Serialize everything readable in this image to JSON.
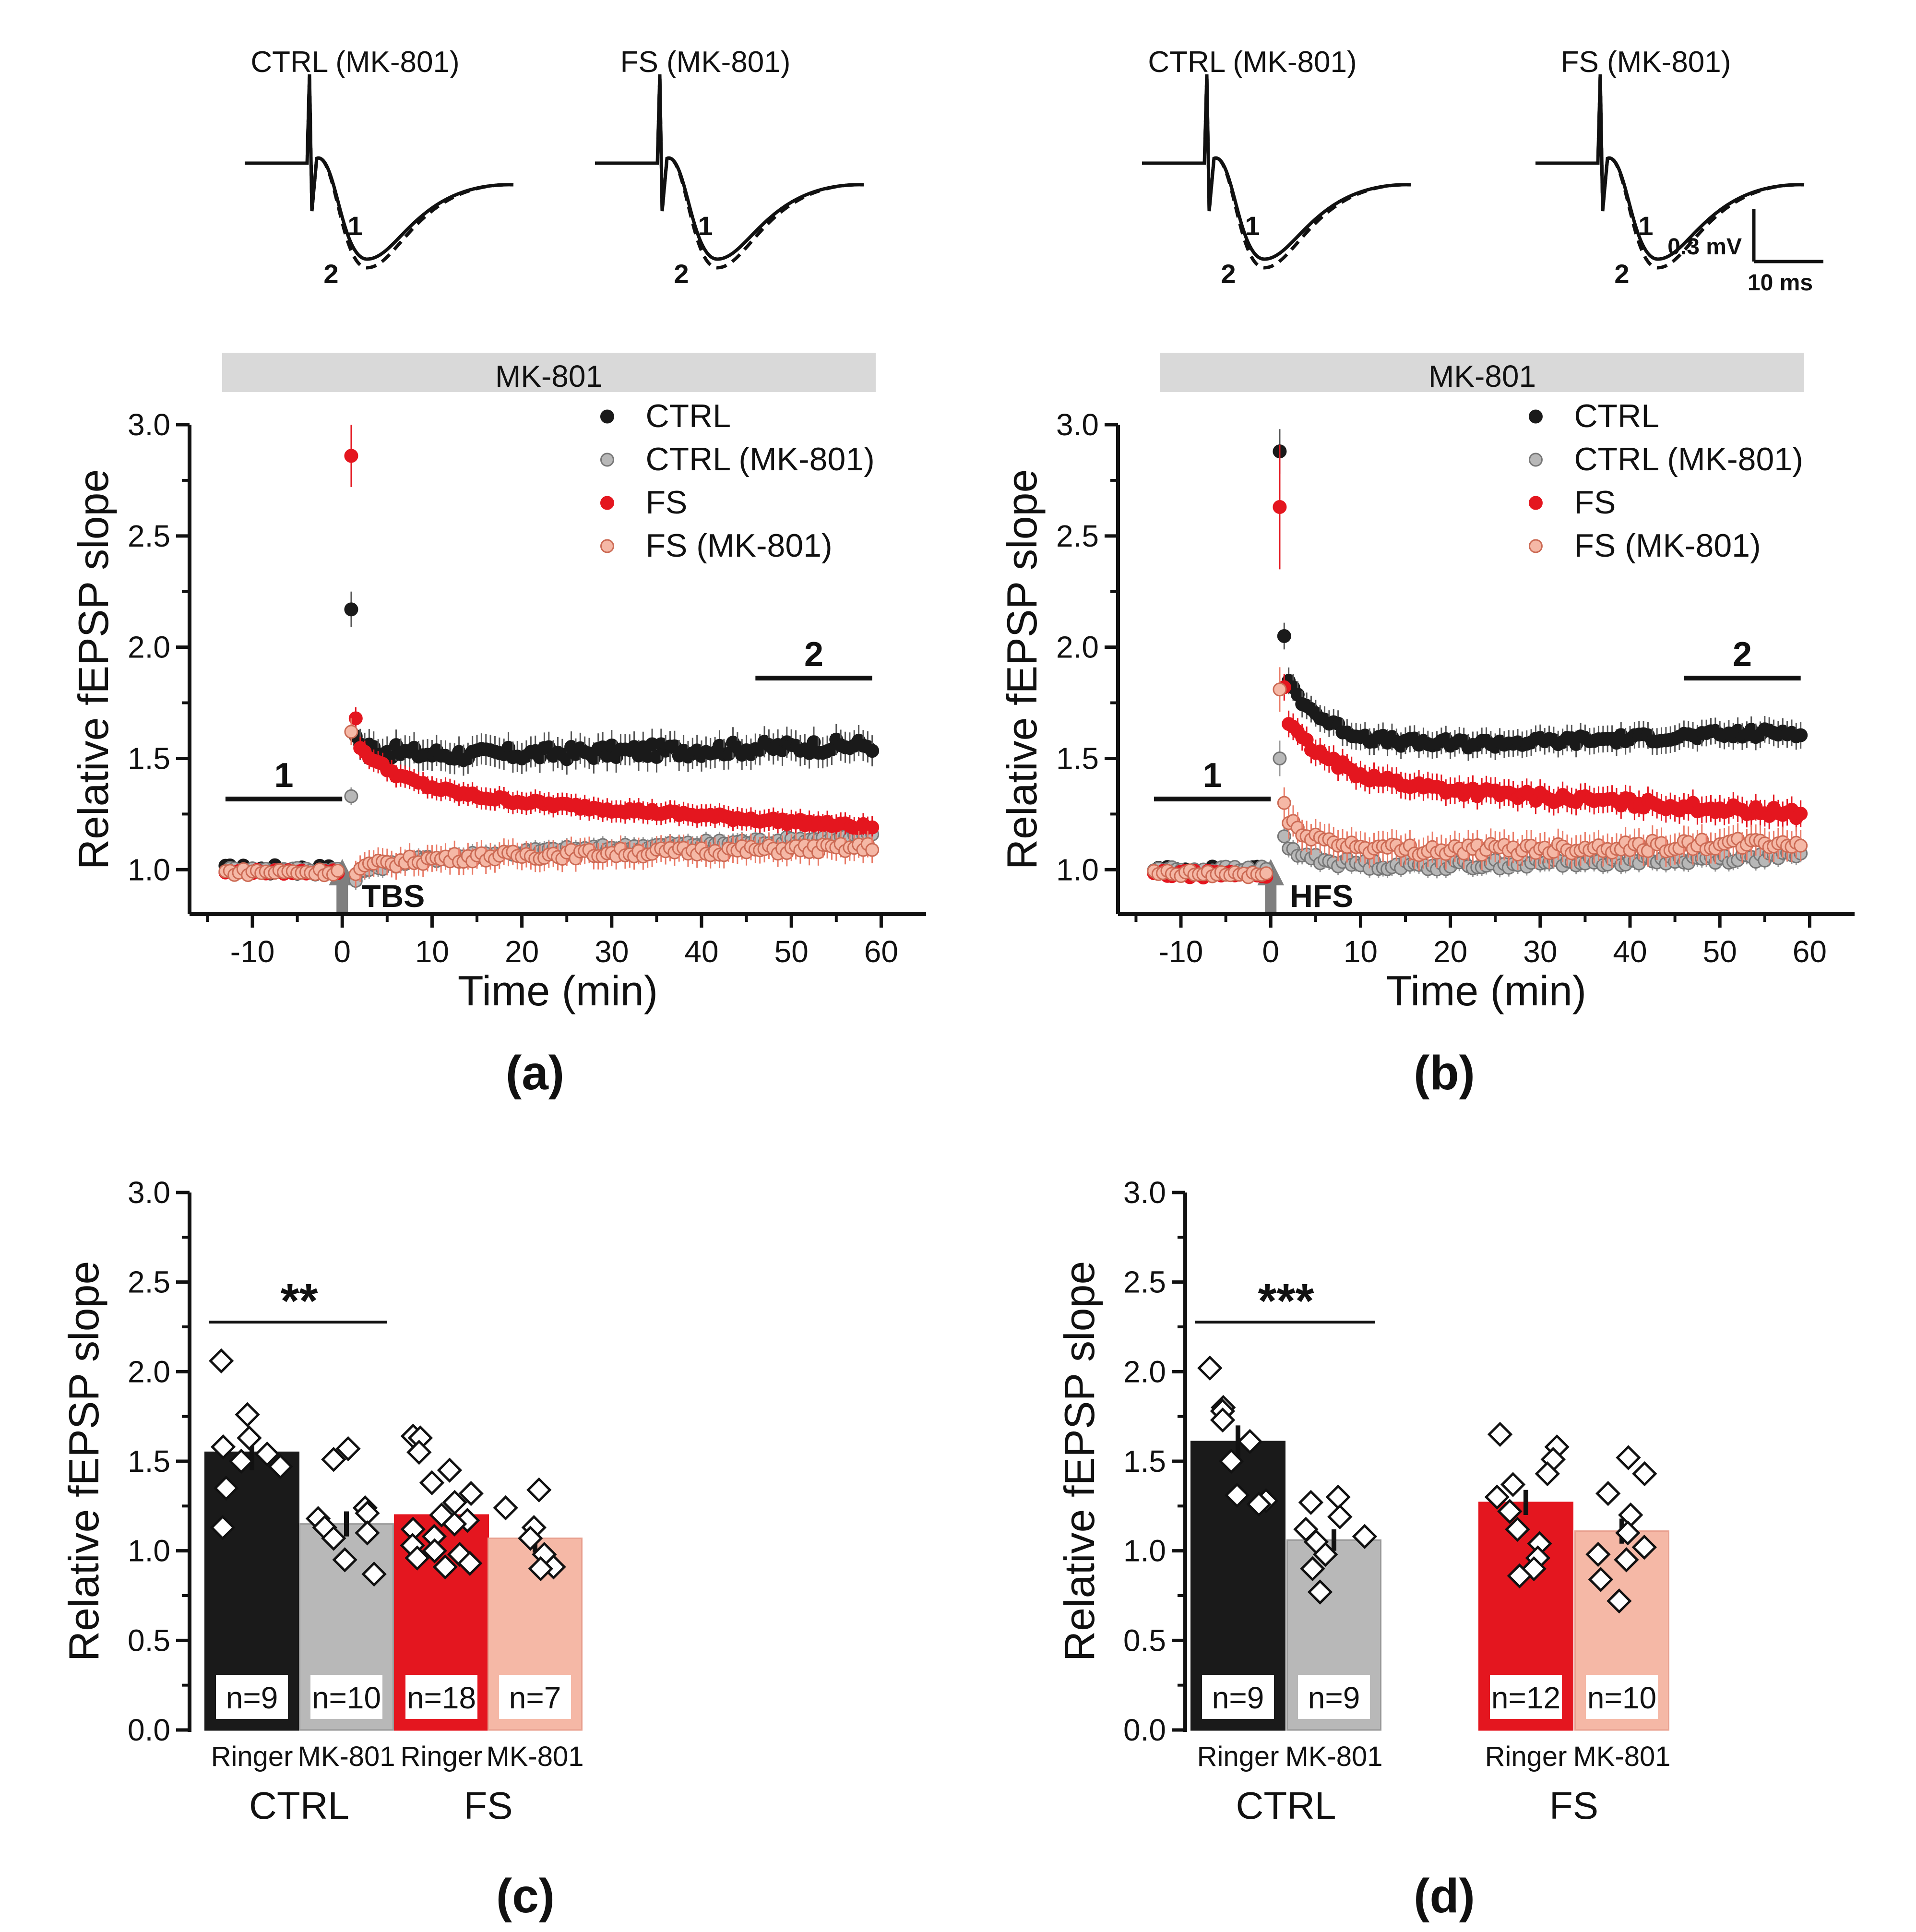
{
  "figure": {
    "background": "#ffffff"
  },
  "colors": {
    "ctrl": "#1a1a1a",
    "ctrl_mk801": "#b8b8b8",
    "fs": "#e4161f",
    "fs_mk801": "#f5b8a6",
    "drug_bar": "#d9d9d9",
    "arrow": "#7f7f7f",
    "axis": "#111111"
  },
  "chart_data": [
    {
      "id": "a",
      "type": "scatter",
      "panel_label": "(a)",
      "drug_bar_label": "MK-801",
      "xlabel": "Time (min)",
      "ylabel": "Relative fEPSP slope",
      "xlim": [
        -17,
        65
      ],
      "ylim": [
        0.8,
        3.0
      ],
      "xticks": [
        -10,
        0,
        10,
        20,
        30,
        40,
        50,
        60
      ],
      "yticks": [
        1.0,
        1.5,
        2.0,
        2.5,
        3.0
      ],
      "stim_label": "TBS",
      "baseline_label": "1",
      "late_label": "2",
      "baseline_window": [
        -13,
        0
      ],
      "late_window": [
        46,
        59
      ],
      "traces": [
        {
          "title": "CTRL (MK-801)",
          "label1": "1",
          "label2": "2"
        },
        {
          "title": "FS (MK-801)",
          "label1": "1",
          "label2": "2"
        }
      ],
      "series": [
        {
          "name": "CTRL",
          "key": "ctrl",
          "baseline": 1.0,
          "post_peak": 2.17,
          "peak_err": 0.08,
          "second": 1.6,
          "level_early": 1.5,
          "level_late": 1.56,
          "err": 0.07,
          "noise": 0.03
        },
        {
          "name": "CTRL (MK-801)",
          "key": "ctrl_mk801",
          "baseline": 1.0,
          "post_peak": 1.33,
          "peak_err": 0.04,
          "second": 0.95,
          "level_early": 1.05,
          "level_late": 1.15,
          "err": 0.04,
          "noise": 0.015
        },
        {
          "name": "FS",
          "key": "fs",
          "baseline": 0.99,
          "post_peak": 2.86,
          "peak_err": 0.14,
          "second": 1.68,
          "level_early": 1.35,
          "level_late": 1.19,
          "err": 0.05,
          "noise": 0.012
        },
        {
          "name": "FS (MK-801)",
          "key": "fs_mk801",
          "baseline": 0.99,
          "post_peak": 1.62,
          "peak_err": 0.06,
          "second": 0.98,
          "level_early": 1.05,
          "level_late": 1.1,
          "err": 0.06,
          "noise": 0.02
        }
      ]
    },
    {
      "id": "b",
      "type": "scatter",
      "panel_label": "(b)",
      "drug_bar_label": "MK-801",
      "xlabel": "Time (min)",
      "ylabel": "Relative fEPSP slope",
      "xlim": [
        -17,
        65
      ],
      "ylim": [
        0.8,
        3.0
      ],
      "xticks": [
        -10,
        0,
        10,
        20,
        30,
        40,
        50,
        60
      ],
      "yticks": [
        1.0,
        1.5,
        2.0,
        2.5,
        3.0
      ],
      "stim_label": "HFS",
      "baseline_label": "1",
      "late_label": "2",
      "baseline_window": [
        -13,
        0
      ],
      "late_window": [
        46,
        59
      ],
      "traces": [
        {
          "title": "CTRL (MK-801)",
          "label1": "1",
          "label2": "2"
        },
        {
          "title": "FS (MK-801)",
          "label1": "1",
          "label2": "2",
          "scale_v": "0.3 mV",
          "scale_t": "10 ms"
        }
      ],
      "series": [
        {
          "name": "CTRL",
          "key": "ctrl",
          "baseline": 1.0,
          "post_peak": 2.88,
          "peak_err": 0.1,
          "second": 2.05,
          "level_early": 1.53,
          "level_late": 1.62,
          "err": 0.06,
          "noise": 0.02
        },
        {
          "name": "CTRL (MK-801)",
          "key": "ctrl_mk801",
          "baseline": 1.0,
          "post_peak": 1.5,
          "peak_err": 0.08,
          "second": 1.15,
          "level_early": 1.0,
          "level_late": 1.06,
          "err": 0.04,
          "noise": 0.02
        },
        {
          "name": "FS",
          "key": "fs",
          "baseline": 0.98,
          "post_peak": 2.63,
          "peak_err": 0.28,
          "second": 1.82,
          "level_early": 1.4,
          "level_late": 1.25,
          "err": 0.06,
          "noise": 0.02
        },
        {
          "name": "FS (MK-801)",
          "key": "fs_mk801",
          "baseline": 0.98,
          "post_peak": 1.81,
          "peak_err": 0.1,
          "second": 1.3,
          "level_early": 1.07,
          "level_late": 1.12,
          "err": 0.07,
          "noise": 0.025
        }
      ]
    },
    {
      "id": "c",
      "type": "bar",
      "panel_label": "(c)",
      "ylabel": "Relative fEPSP slope",
      "ylim": [
        0,
        3.0
      ],
      "yticks": [
        0.0,
        0.5,
        1.0,
        1.5,
        2.0,
        2.5,
        3.0
      ],
      "significance": "**",
      "groups": [
        {
          "name": "CTRL",
          "bars": [
            {
              "condition": "Ringer",
              "key": "ctrl",
              "value": 1.55,
              "sem": 0.1,
              "n_label": "n=9",
              "points": [
                2.06,
                1.76,
                1.63,
                1.58,
                1.54,
                1.5,
                1.47,
                1.35,
                1.13
              ]
            },
            {
              "condition": "MK-801",
              "key": "ctrl_mk801",
              "value": 1.15,
              "sem": 0.07,
              "n_label": "n=10",
              "points": [
                1.57,
                1.51,
                1.24,
                1.21,
                1.18,
                1.13,
                1.1,
                1.07,
                0.95,
                0.87
              ]
            }
          ]
        },
        {
          "name": "FS",
          "bars": [
            {
              "condition": "Ringer",
              "key": "fs",
              "value": 1.2,
              "sem": 0.05,
              "n_label": "n=18",
              "points": [
                1.64,
                1.63,
                1.55,
                1.45,
                1.38,
                1.32,
                1.27,
                1.2,
                1.17,
                1.15,
                1.12,
                1.08,
                1.03,
                1.0,
                0.98,
                0.96,
                0.93,
                0.91
              ]
            },
            {
              "condition": "MK-801",
              "key": "fs_mk801",
              "value": 1.07,
              "sem": 0.08,
              "n_label": "n=7",
              "points": [
                1.34,
                1.24,
                1.13,
                1.07,
                0.98,
                0.91,
                0.9
              ]
            }
          ]
        }
      ]
    },
    {
      "id": "d",
      "type": "bar",
      "panel_label": "(d)",
      "ylabel": "Relative fEPSP slope",
      "ylim": [
        0,
        3.0
      ],
      "yticks": [
        0.0,
        0.5,
        1.0,
        1.5,
        2.0,
        2.5,
        3.0
      ],
      "significance": "***",
      "groups": [
        {
          "name": "CTRL",
          "bars": [
            {
              "condition": "Ringer",
              "key": "ctrl",
              "value": 1.61,
              "sem": 0.09,
              "n_label": "n=9",
              "points": [
                2.02,
                1.8,
                1.78,
                1.73,
                1.61,
                1.5,
                1.31,
                1.28,
                1.26
              ]
            },
            {
              "condition": "MK-801",
              "key": "ctrl_mk801",
              "value": 1.06,
              "sem": 0.06,
              "n_label": "n=9",
              "points": [
                1.3,
                1.27,
                1.19,
                1.12,
                1.08,
                1.05,
                0.98,
                0.9,
                0.77
              ]
            }
          ]
        },
        {
          "name": "FS",
          "bars": [
            {
              "condition": "Ringer",
              "key": "fs",
              "value": 1.27,
              "sem": 0.07,
              "n_label": "n=12",
              "points": [
                1.65,
                1.58,
                1.51,
                1.43,
                1.37,
                1.3,
                1.22,
                1.12,
                1.04,
                0.96,
                0.9,
                0.86
              ]
            },
            {
              "condition": "MK-801",
              "key": "fs_mk801",
              "value": 1.11,
              "sem": 0.07,
              "n_label": "n=10",
              "points": [
                1.52,
                1.43,
                1.32,
                1.2,
                1.1,
                1.02,
                0.98,
                0.95,
                0.84,
                0.72
              ]
            }
          ]
        }
      ]
    }
  ]
}
